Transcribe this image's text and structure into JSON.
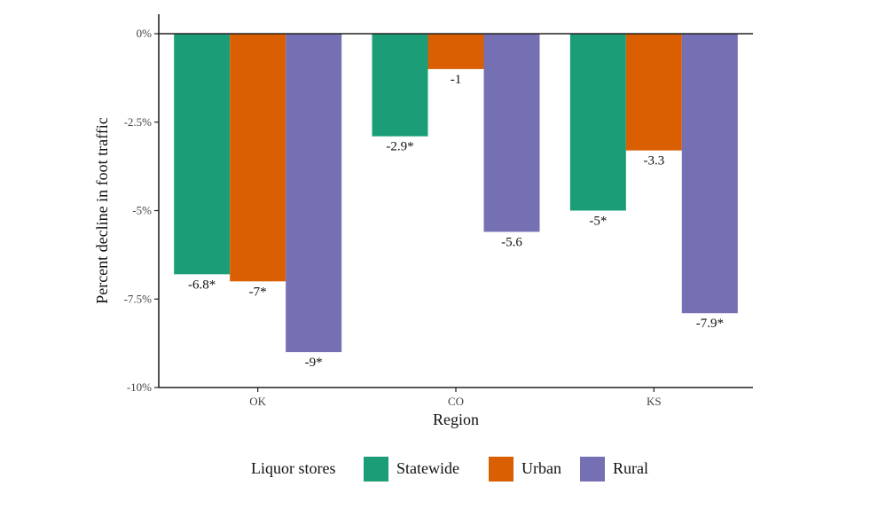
{
  "chart_data": {
    "type": "bar",
    "categories": [
      "OK",
      "CO",
      "KS"
    ],
    "series": [
      {
        "name": "Statewide",
        "color": "#1b9e77",
        "values": [
          -6.8,
          -2.9,
          -5.0
        ],
        "labels": [
          "-6.8*",
          "-2.9*",
          "-5*"
        ]
      },
      {
        "name": "Urban",
        "color": "#d95f02",
        "values": [
          -7.0,
          -1.0,
          -3.3
        ],
        "labels": [
          "-7*",
          "-1",
          "-3.3"
        ]
      },
      {
        "name": "Rural",
        "color": "#7570b3",
        "values": [
          -9.0,
          -5.6,
          -7.9
        ],
        "labels": [
          "-9*",
          "-5.6",
          "-7.9*"
        ]
      }
    ],
    "xlabel": "Region",
    "ylabel": "Percent decline in foot traffic",
    "ylim": [
      -10,
      0
    ],
    "yticks": [
      0,
      -2.5,
      -5,
      -7.5,
      -10
    ],
    "ytick_labels": [
      "0%",
      "-2.5%",
      "-5%",
      "-7.5%",
      "-10%"
    ],
    "legend": {
      "title": "Liquor stores",
      "position": "bottom"
    },
    "grid": false
  }
}
